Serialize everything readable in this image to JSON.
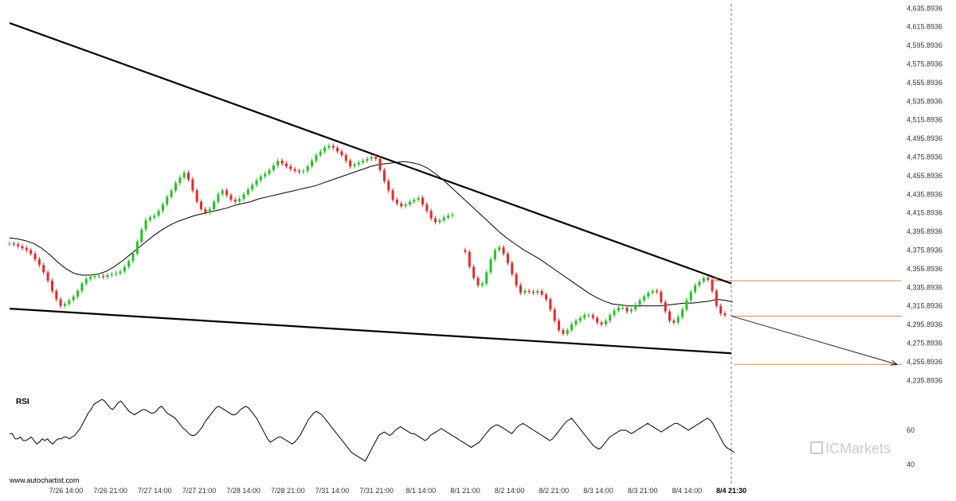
{
  "source": "www.autochartist.com",
  "brand": "ICMarkets",
  "colors": {
    "up": "#22c322",
    "down": "#e8262a",
    "trendline": "#000000",
    "ma": "#000000",
    "level": "#f08040",
    "forecast": "#222222",
    "current_line": "#555555",
    "watermark": "#c9ccd0"
  },
  "chart_data": {
    "type": "candlestick",
    "title": "",
    "price_axis": {
      "ticks": [
        "4,635.8936",
        "4,615.8936",
        "4,595.8936",
        "4,575.8936",
        "4,555.8936",
        "4,535.8936",
        "4,515.8936",
        "4,495.8936",
        "4,475.8936",
        "4,455.8936",
        "4,435.8936",
        "4,415.8936",
        "4,395.8936",
        "4,375.8936",
        "4,355.8936",
        "4,335.8936",
        "4,315.8936",
        "4,295.8936",
        "4,275.8936",
        "4,255.8936",
        "4,235.8936"
      ],
      "range": [
        4225.8936,
        4637.8936
      ]
    },
    "time_axis": {
      "ticks": [
        "7/26 14:00",
        "7/26 21:00",
        "7/27 14:00",
        "7/27 21:00",
        "7/28 14:00",
        "7/28 21:00",
        "7/31 14:00",
        "7/31 21:00",
        "8/1 14:00",
        "8/1 21:00",
        "8/2 14:00",
        "8/2 21:00",
        "8/3 14:00",
        "8/3 21:00",
        "8/4 14:00",
        "8/4 21:30"
      ],
      "current": "8/4 21:30"
    },
    "close_path": [
      4383,
      4382,
      4380,
      4378,
      4376,
      4372,
      4366,
      4360,
      4352,
      4343,
      4332,
      4323,
      4316,
      4318,
      4322,
      4326,
      4332,
      4340,
      4345,
      4347,
      4348,
      4348,
      4347,
      4349,
      4350,
      4351,
      4353,
      4358,
      4364,
      4372,
      4385,
      4398,
      4408,
      4411,
      4413,
      4418,
      4425,
      4433,
      4440,
      4448,
      4454,
      4459,
      4452,
      4440,
      4428,
      4420,
      4416,
      4420,
      4428,
      4436,
      4440,
      4435,
      4430,
      4428,
      4431,
      4436,
      4441,
      4446,
      4451,
      4455,
      4458,
      4462,
      4467,
      4472,
      4469,
      4466,
      4463,
      4461,
      4460,
      4461,
      4466,
      4472,
      4478,
      4482,
      4486,
      4488,
      4486,
      4482,
      4478,
      4472,
      4466,
      4468,
      4470,
      4472,
      4474,
      4476,
      4474,
      4462,
      4450,
      4440,
      4430,
      4426,
      4423,
      4425,
      4428,
      4430,
      4432,
      4425,
      4418,
      4410,
      4406,
      4408,
      4411,
      4413,
      4414,
      null,
      null,
      4374,
      4358,
      4346,
      4338,
      4340,
      4352,
      4366,
      4376,
      4379,
      4372,
      4362,
      4350,
      4338,
      4330,
      4332,
      4331,
      4330,
      4332,
      4328,
      4323,
      4312,
      4300,
      4290,
      4286,
      4290,
      4296,
      4300,
      4303,
      4306,
      4306,
      4303,
      4298,
      4296,
      4300,
      4306,
      4311,
      4314,
      4314,
      4310,
      4312,
      4317,
      4322,
      4326,
      4330,
      4332,
      4331,
      4320,
      4310,
      4300,
      4298,
      4304,
      4312,
      4322,
      4331,
      4338,
      4342,
      4346,
      4344,
      4332,
      4316,
      4308,
      4306
    ],
    "moving_average": [
      4389,
      4388,
      4386,
      4383,
      4378,
      4371,
      4363,
      4356,
      4351,
      4349,
      4349,
      4350,
      4353,
      4358,
      4364,
      4371,
      4378,
      4385,
      4392,
      4398,
      4403,
      4407,
      4410,
      4413,
      4415,
      4417,
      4419,
      4421,
      4424,
      4426,
      4428,
      4431,
      4433,
      4435,
      4437,
      4439,
      4441,
      4443,
      4445,
      4448,
      4451,
      4454,
      4457,
      4460,
      4463,
      4466,
      4468,
      4469,
      4470,
      4471,
      4470,
      4468,
      4464,
      4458,
      4451,
      4443,
      4435,
      4427,
      4419,
      4411,
      4403,
      4395,
      4388,
      4382,
      4376,
      4371,
      4366,
      4360,
      4354,
      4348,
      4342,
      4336,
      4330,
      4325,
      4321,
      4318,
      4317,
      4316,
      4316,
      4316,
      4316,
      4316,
      4317,
      4318,
      4319,
      4319,
      4320,
      4321,
      4323,
      4322,
      4320
    ],
    "trendlines": [
      {
        "name": "resistance",
        "points": [
          [
            "7/26 09:00",
            4620
          ],
          [
            "8/4 21:30",
            4340
          ]
        ]
      },
      {
        "name": "support",
        "points": [
          [
            "7/26 09:00",
            4313
          ],
          [
            "8/4 21:30",
            4265
          ]
        ]
      }
    ],
    "levels": [
      4343.0,
      4305.0,
      4253.0
    ],
    "forecast": {
      "from": 4305.0,
      "to": 4253.0
    },
    "rsi": {
      "title": "RSI",
      "ticks": [
        "60",
        "40"
      ],
      "range": [
        35,
        85
      ],
      "values": [
        58,
        58,
        55,
        55,
        56,
        54,
        54,
        55,
        56,
        54,
        52,
        53,
        55,
        54,
        55,
        53,
        52,
        54,
        55,
        55,
        56,
        56,
        55,
        56,
        57,
        59,
        61,
        64,
        67,
        70,
        72,
        75,
        76,
        77,
        78,
        77,
        75,
        73,
        72,
        74,
        76,
        77,
        75,
        73,
        71,
        70,
        69,
        70,
        71,
        72,
        72,
        71,
        70,
        70,
        71,
        73,
        74,
        72,
        70,
        69,
        68,
        67,
        65,
        63,
        61,
        60,
        58,
        57,
        57,
        58,
        60,
        62,
        65,
        67,
        69,
        71,
        73,
        74,
        73,
        72,
        71,
        70,
        69,
        69,
        70,
        72,
        73,
        74,
        73,
        71,
        69,
        67,
        64,
        61,
        58,
        55,
        53,
        54,
        55,
        56,
        56,
        55,
        54,
        53,
        52,
        53,
        55,
        57,
        60,
        63,
        66,
        68,
        70,
        71,
        70,
        69,
        67,
        65,
        63,
        61,
        59,
        57,
        55,
        53,
        51,
        49,
        47,
        46,
        45,
        44,
        43,
        42,
        45,
        48,
        51,
        54,
        57,
        58,
        59,
        58,
        57,
        58,
        60,
        61,
        62,
        61,
        60,
        59,
        58,
        58,
        57,
        56,
        55,
        54,
        55,
        57,
        58,
        59,
        60,
        61,
        60,
        59,
        58,
        57,
        56,
        55,
        54,
        53,
        52,
        51,
        50,
        51,
        52,
        53,
        55,
        57,
        59,
        61,
        62,
        63,
        63,
        62,
        61,
        60,
        59,
        58,
        60,
        62,
        63,
        64,
        63,
        62,
        61,
        60,
        59,
        58,
        57,
        56,
        55,
        54,
        55,
        57,
        59,
        61,
        63,
        65,
        66,
        67,
        65,
        63,
        61,
        59,
        57,
        55,
        53,
        51,
        50,
        49,
        50,
        52,
        54,
        56,
        57,
        58,
        59,
        60,
        60,
        60,
        59,
        58,
        59,
        60,
        61,
        62,
        63,
        64,
        63,
        62,
        61,
        60,
        59,
        60,
        61,
        62,
        63,
        64,
        64,
        63,
        62,
        61,
        60,
        61,
        62,
        63,
        64,
        65,
        66,
        67,
        66,
        64,
        61,
        58,
        55,
        52,
        50,
        49,
        48,
        47
      ]
    }
  }
}
